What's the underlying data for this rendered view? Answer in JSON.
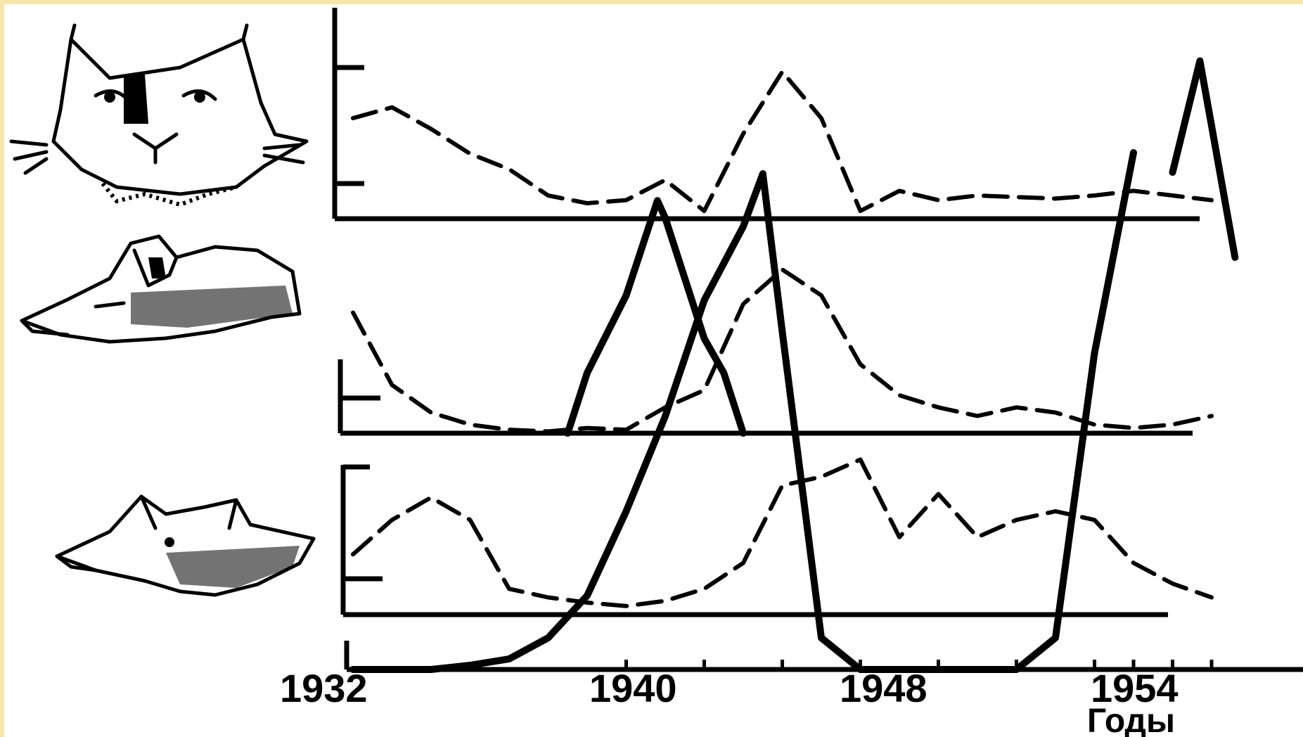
{
  "chart_data": {
    "type": "line",
    "title": "",
    "xlabel": "Годы",
    "ylabel": "",
    "x_ticks": [
      "1932",
      "1940",
      "1948",
      "1954"
    ],
    "xlim": [
      1932,
      1955
    ],
    "grid": false,
    "panels": [
      {
        "animal": "lynx",
        "icon": "lynx-head-icon",
        "series": [
          {
            "style": "dashed",
            "x": [
              1932,
              1933,
              1934,
              1935,
              1936,
              1937,
              1938,
              1939,
              1940,
              1941,
              1942,
              1943,
              1944,
              1945,
              1946,
              1947,
              1948,
              1949,
              1950,
              1951,
              1952,
              1953,
              1954
            ],
            "values": [
              0.65,
              0.72,
              0.58,
              0.42,
              0.32,
              0.15,
              0.1,
              0.12,
              0.25,
              0.05,
              0.55,
              0.95,
              0.65,
              0.05,
              0.18,
              0.12,
              0.15,
              0.14,
              0.13,
              0.15,
              0.18,
              0.15,
              0.12
            ]
          },
          {
            "style": "solid",
            "x": [
              1953,
              1953.7,
              1954,
              1954.6
            ],
            "values": [
              0.3,
              1.02,
              0.6,
              -0.25
            ]
          }
        ]
      },
      {
        "animal": "fox",
        "icon": "fox-head-icon",
        "series": [
          {
            "style": "dashed",
            "x": [
              1932,
              1933,
              1934,
              1935,
              1936,
              1937,
              1938,
              1939,
              1940,
              1941,
              1942,
              1943,
              1944,
              1945,
              1946,
              1947,
              1948,
              1949,
              1950,
              1951,
              1952,
              1953,
              1954
            ],
            "values": [
              0.7,
              0.28,
              0.12,
              0.05,
              0.02,
              0.01,
              0.03,
              0.02,
              0.15,
              0.25,
              0.75,
              0.95,
              0.8,
              0.4,
              0.22,
              0.15,
              0.1,
              0.15,
              0.12,
              0.05,
              0.03,
              0.05,
              0.1
            ]
          },
          {
            "style": "solid",
            "x": [
              1937.5,
              1938,
              1939,
              1939.8,
              1940,
              1941,
              1941.5,
              1942
            ],
            "values": [
              0.0,
              0.35,
              0.8,
              1.35,
              1.25,
              0.55,
              0.35,
              0.0
            ]
          }
        ]
      },
      {
        "animal": "wolf",
        "icon": "wolf-head-icon",
        "series": [
          {
            "style": "dashed",
            "x": [
              1932,
              1933,
              1934,
              1935,
              1936,
              1937,
              1938,
              1939,
              1940,
              1941,
              1942,
              1943,
              1944,
              1945,
              1946,
              1947,
              1948,
              1949,
              1950,
              1951,
              1952,
              1953,
              1954
            ],
            "values": [
              0.35,
              0.55,
              0.68,
              0.55,
              0.15,
              0.1,
              0.07,
              0.05,
              0.08,
              0.15,
              0.3,
              0.75,
              0.8,
              0.9,
              0.45,
              0.7,
              0.45,
              0.55,
              0.6,
              0.55,
              0.3,
              0.18,
              0.1
            ]
          },
          {
            "style": "solid",
            "x": [
              1932,
              1934,
              1935,
              1936,
              1937,
              1938,
              1939,
              1940,
              1941,
              1942,
              1942.5,
              1943,
              1944,
              1945,
              1946,
              1947,
              1948,
              1949,
              1950,
              1951,
              1952
            ],
            "values": [
              0.0,
              0.0,
              0.02,
              0.05,
              0.15,
              0.35,
              0.75,
              1.2,
              1.75,
              2.1,
              2.35,
              1.6,
              0.15,
              0.0,
              0.0,
              0.0,
              0.0,
              0.0,
              0.15,
              1.5,
              2.45
            ]
          }
        ]
      }
    ]
  }
}
